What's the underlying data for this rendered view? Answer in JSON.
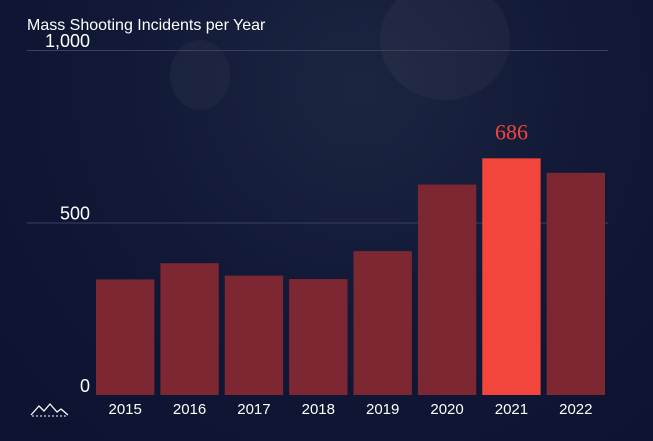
{
  "colors": {
    "background": "#0e1530",
    "bar": "#7d2733",
    "highlight_bar": "#f2453b",
    "highlight_label": "#f2453b",
    "text": "#ffffff",
    "grid": "#3a4060"
  },
  "chart_data": {
    "type": "bar",
    "title": "Mass Shooting Incidents per Year",
    "xlabel": "",
    "ylabel": "",
    "categories": [
      "2015",
      "2016",
      "2017",
      "2018",
      "2019",
      "2020",
      "2021",
      "2022"
    ],
    "values": [
      335,
      382,
      346,
      336,
      417,
      610,
      686,
      644
    ],
    "ylim": [
      0,
      1000
    ],
    "yticks": [
      0,
      500,
      1000
    ],
    "ytick_labels": [
      "0",
      "500",
      "1,000"
    ],
    "highlight": {
      "category": "2021",
      "label": "686"
    },
    "grid": true,
    "legend": "none"
  },
  "logo_icon": "mountain-outline-logo-icon"
}
